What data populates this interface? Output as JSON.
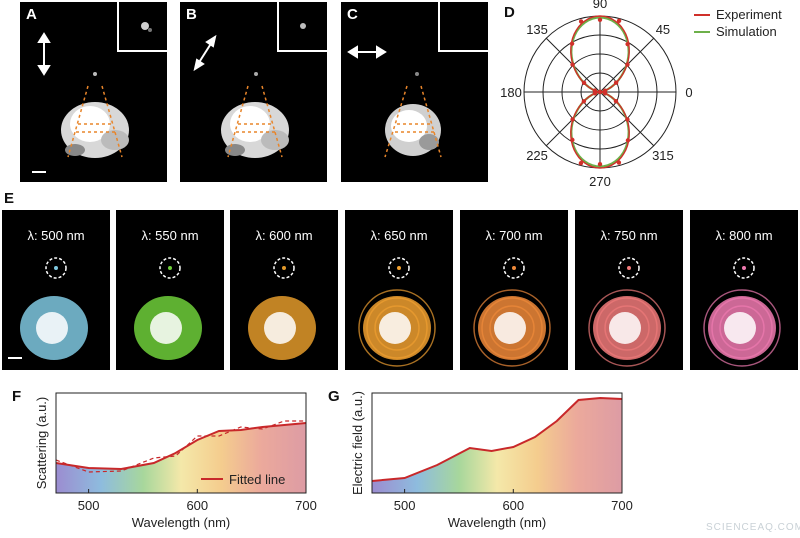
{
  "panels": {
    "a": "A",
    "b": "B",
    "c": "C",
    "d": "D",
    "e": "E",
    "f": "F",
    "g": "G"
  },
  "polar": {
    "angle_labels": [
      "90",
      "45",
      "0",
      "315",
      "270",
      "225",
      "180",
      "135"
    ],
    "legend": [
      "Experiment",
      "Simulation"
    ],
    "colors": {
      "experiment": "#d0302a",
      "simulation": "#6db04a"
    }
  },
  "wavelength_panels": [
    {
      "label": "λ: 500  nm",
      "color": "#7fc8e0"
    },
    {
      "label": "λ: 550  nm",
      "color": "#6fcf3a"
    },
    {
      "label": "λ: 600  nm",
      "color": "#e39a2a"
    },
    {
      "label": "λ: 650  nm",
      "color": "#f0a030"
    },
    {
      "label": "λ: 700  nm",
      "color": "#f08a3a"
    },
    {
      "label": "λ: 750  nm",
      "color": "#f07a7a"
    },
    {
      "label": "λ: 800  nm",
      "color": "#f07ab0"
    }
  ],
  "chart_data": [
    {
      "type": "line",
      "panel": "F",
      "xlabel": "Wavelength (nm)",
      "ylabel": "Scattering (a.u.)",
      "xlim": [
        470,
        700
      ],
      "xticks": [
        500,
        600,
        700
      ],
      "legend": [
        "Fitted line"
      ],
      "series": [
        {
          "name": "Fitted line",
          "x": [
            470,
            500,
            530,
            560,
            580,
            600,
            620,
            640,
            660,
            680,
            700
          ],
          "values": [
            0.3,
            0.25,
            0.24,
            0.3,
            0.4,
            0.53,
            0.62,
            0.63,
            0.66,
            0.68,
            0.7
          ]
        }
      ]
    },
    {
      "type": "area",
      "panel": "G",
      "xlabel": "Wavelength (nm)",
      "ylabel": "Electric field (a.u.)",
      "xlim": [
        470,
        700
      ],
      "xticks": [
        500,
        600,
        700
      ],
      "series": [
        {
          "x": [
            470,
            500,
            530,
            560,
            580,
            600,
            620,
            640,
            660,
            680,
            700
          ],
          "values": [
            0.12,
            0.15,
            0.28,
            0.45,
            0.42,
            0.46,
            0.56,
            0.72,
            0.93,
            0.95,
            0.94
          ]
        }
      ]
    }
  ],
  "footer": {
    "watermark": "SCIENCEAQ.COM"
  }
}
